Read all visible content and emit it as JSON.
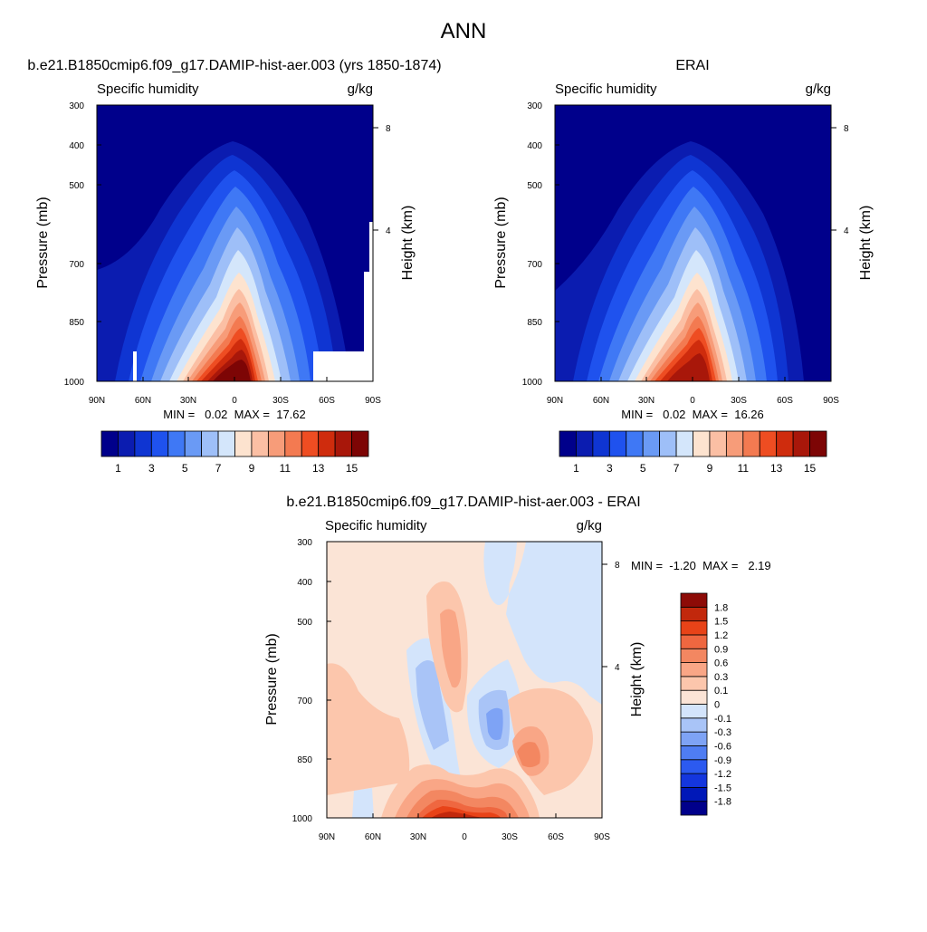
{
  "figure_title": "ANN",
  "colors": {
    "abs_palette": [
      "#00008b",
      "#0b1cb0",
      "#0f35d2",
      "#1f52ee",
      "#3f78f5",
      "#6a9af5",
      "#9ebff8",
      "#d4e6fb",
      "#fde3cf",
      "#fbbfa4",
      "#f79c79",
      "#f37a51",
      "#ee4d22",
      "#cf2c0d",
      "#a8170a",
      "#7d0505"
    ],
    "diff_palette": [
      "#00008b",
      "#0018b8",
      "#1436de",
      "#2c5af0",
      "#4f7df2",
      "#7ea3f5",
      "#a9c4f7",
      "#d3e4fb",
      "#fbe4d6",
      "#fcc6ac",
      "#f9a686",
      "#f38761",
      "#ef6740",
      "#e84318",
      "#c2280c",
      "#8d0b07"
    ],
    "frame": "#000000"
  },
  "chart_data": [
    {
      "type": "heatmap",
      "title": "b.e21.B1850cmip6.f09_g17.DAMIP-hist-aer.003 (yrs 1850-1874)",
      "field_label": "Specific humidity",
      "units": "g/kg",
      "xlabel": "",
      "ylabel": "Pressure (mb)",
      "y2label": "Height (km)",
      "x_ticks": [
        "90N",
        "60N",
        "30N",
        "0",
        "30S",
        "60S",
        "90S"
      ],
      "y_ticks": [
        "300",
        "400",
        "500",
        "700",
        "850",
        "1000"
      ],
      "y2_ticks": [
        "8",
        "4"
      ],
      "xlim": [
        90,
        -90
      ],
      "ylim": [
        1000,
        300
      ],
      "min_text": "MIN =   0.02  MAX =  17.62",
      "min": 0.02,
      "max": 17.62,
      "colorbar_levels": [
        1,
        2,
        3,
        4,
        5,
        6,
        7,
        8,
        9,
        10,
        11,
        12,
        13,
        14,
        15
      ],
      "colorbar_labels": [
        "1",
        "3",
        "5",
        "7",
        "9",
        "11",
        "13",
        "15"
      ]
    },
    {
      "type": "heatmap",
      "title": "ERAI",
      "field_label": "Specific humidity",
      "units": "g/kg",
      "xlabel": "",
      "ylabel": "Pressure (mb)",
      "y2label": "Height (km)",
      "x_ticks": [
        "90N",
        "60N",
        "30N",
        "0",
        "30S",
        "60S",
        "90S"
      ],
      "y_ticks": [
        "300",
        "400",
        "500",
        "700",
        "850",
        "1000"
      ],
      "y2_ticks": [
        "8",
        "4"
      ],
      "xlim": [
        90,
        -90
      ],
      "ylim": [
        1000,
        300
      ],
      "min_text": "MIN =   0.02  MAX =  16.26",
      "min": 0.02,
      "max": 16.26,
      "colorbar_levels": [
        1,
        2,
        3,
        4,
        5,
        6,
        7,
        8,
        9,
        10,
        11,
        12,
        13,
        14,
        15
      ],
      "colorbar_labels": [
        "1",
        "3",
        "5",
        "7",
        "9",
        "11",
        "13",
        "15"
      ]
    },
    {
      "type": "heatmap",
      "title": "b.e21.B1850cmip6.f09_g17.DAMIP-hist-aer.003 - ERAI",
      "field_label": "Specific humidity",
      "units": "g/kg",
      "xlabel": "",
      "ylabel": "Pressure (mb)",
      "y2label": "Height (km)",
      "x_ticks": [
        "90N",
        "60N",
        "30N",
        "0",
        "30S",
        "60S",
        "90S"
      ],
      "y_ticks": [
        "300",
        "400",
        "500",
        "700",
        "850",
        "1000"
      ],
      "y2_ticks": [
        "8",
        "4"
      ],
      "xlim": [
        90,
        -90
      ],
      "ylim": [
        1000,
        300
      ],
      "min_text": "MIN =  -1.20  MAX =   2.19",
      "min": -1.2,
      "max": 2.19,
      "colorbar_levels": [
        -1.8,
        -1.5,
        -1.2,
        -0.9,
        -0.6,
        -0.3,
        -0.1,
        0,
        0.1,
        0.3,
        0.6,
        0.9,
        1.2,
        1.5,
        1.8
      ],
      "colorbar_labels": [
        "1.8",
        "1.5",
        "1.2",
        "0.9",
        "0.6",
        "0.3",
        "0.1",
        "0",
        "-0.1",
        "-0.3",
        "-0.6",
        "-0.9",
        "-1.2",
        "-1.5",
        "-1.8"
      ]
    }
  ]
}
